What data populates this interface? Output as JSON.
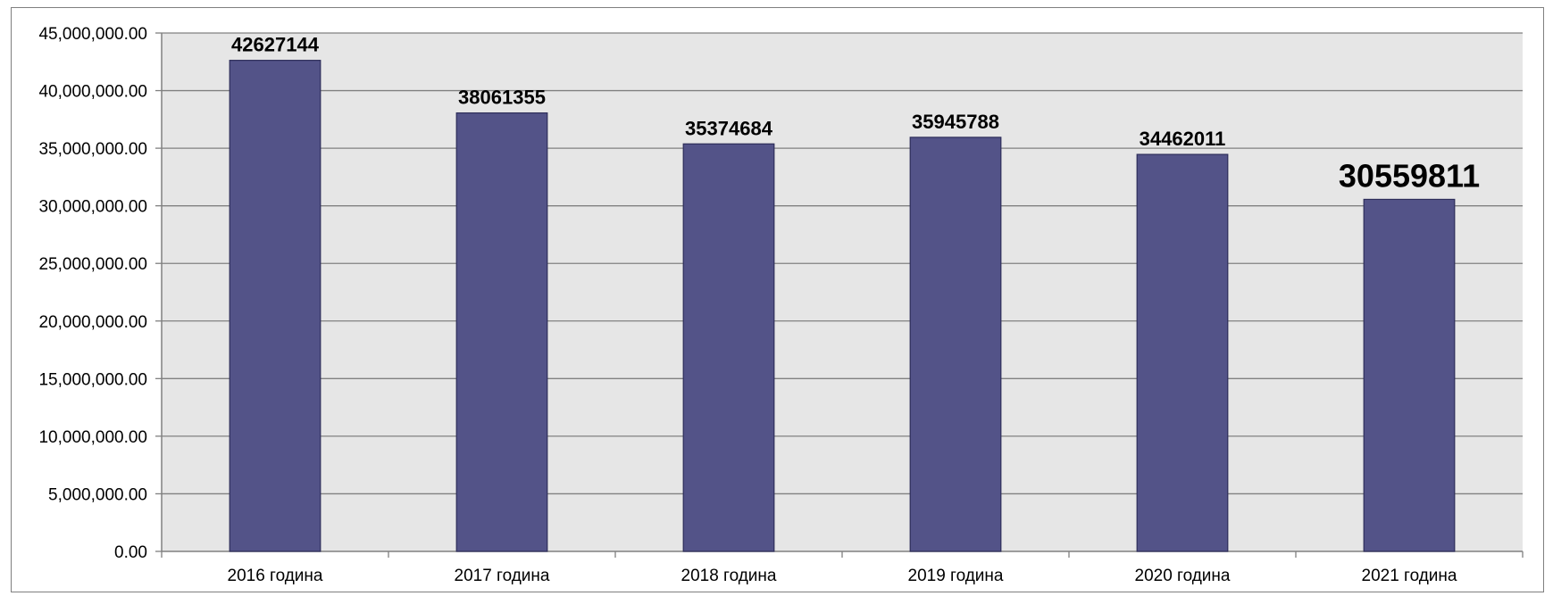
{
  "chart_data": {
    "type": "bar",
    "categories": [
      "2016 година",
      "2017 година",
      "2018 година",
      "2019 година",
      "2020 година",
      "2021 година"
    ],
    "values": [
      42627144,
      38061355,
      35374684,
      35945788,
      34462011,
      30559811
    ],
    "data_labels": [
      "42627144",
      "38061355",
      "35374684",
      "35945788",
      "34462011",
      "30559811"
    ],
    "highlight_index": 5,
    "ylim": [
      0,
      45000000
    ],
    "y_ticks": [
      0,
      5000000,
      10000000,
      15000000,
      20000000,
      25000000,
      30000000,
      35000000,
      40000000,
      45000000
    ],
    "y_tick_labels": [
      "0.00",
      "5,000,000.00",
      "10,000,000.00",
      "15,000,000.00",
      "20,000,000.00",
      "25,000,000.00",
      "30,000,000.00",
      "35,000,000.00",
      "40,000,000.00",
      "45,000,000.00"
    ],
    "grid": true,
    "colors": {
      "bar": "#535388",
      "bar_edge": "#2e2e5a",
      "plot_background": "#e6e6e6",
      "grid": "#808080",
      "axis": "#808080"
    }
  }
}
